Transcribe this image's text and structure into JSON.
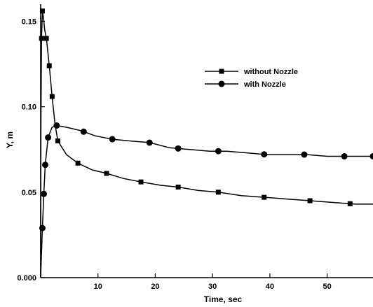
{
  "chart_data": {
    "type": "line",
    "xlabel": "Time, sec",
    "ylabel": "Y, m",
    "xlim": [
      0,
      58
    ],
    "ylim": [
      0,
      0.16
    ],
    "xticks": [
      10,
      20,
      30,
      40,
      50
    ],
    "xtick_labels": [
      "10",
      "20",
      "30",
      "40",
      "50"
    ],
    "yticks": [
      0.0,
      0.05,
      0.1,
      0.15
    ],
    "ytick_labels": [
      "0.000",
      "0.05",
      "0.10",
      "0.15"
    ],
    "grid": false,
    "legend_position": "top-right",
    "series": [
      {
        "name": "without Nozzle",
        "marker": "square",
        "x": [
          0,
          0.05,
          0.15,
          0.3,
          0.5,
          0.7,
          1.0,
          1.5,
          2.0,
          2.5,
          3.0,
          4.5,
          6.5,
          9,
          11.5,
          14.5,
          17.5,
          21,
          24,
          27.5,
          31,
          35,
          39,
          43,
          47,
          51,
          55,
          58
        ],
        "y": [
          0,
          0.09,
          0.14,
          0.156,
          0.152,
          0.145,
          0.14,
          0.124,
          0.106,
          0.09,
          0.08,
          0.072,
          0.067,
          0.063,
          0.061,
          0.058,
          0.056,
          0.054,
          0.053,
          0.051,
          0.05,
          0.048,
          0.047,
          0.046,
          0.045,
          0.044,
          0.043,
          0.043
        ]
      },
      {
        "name": "with Nozzle",
        "marker": "circle",
        "x": [
          0,
          0.1,
          0.3,
          0.55,
          0.8,
          1.3,
          2.0,
          2.8,
          4.5,
          7,
          9.5,
          12.5,
          15.5,
          19,
          22.5,
          26,
          29.5,
          32.5,
          36,
          39.5,
          43,
          46.5,
          50,
          53.5,
          57.5
        ],
        "y": [
          0,
          0.01,
          0.029,
          0.049,
          0.066,
          0.082,
          0.088,
          0.089,
          0.088,
          0.086,
          0.083,
          0.081,
          0.08,
          0.079,
          0.076,
          0.075,
          0.074,
          0.074,
          0.073,
          0.072,
          0.072,
          0.072,
          0.071,
          0.071,
          0.071
        ]
      }
    ],
    "marker_x": {
      "without Nozzle": [
        0.15,
        0.3,
        1.0,
        1.5,
        2.0,
        3.0,
        6.5,
        11.5,
        17.5,
        24,
        31,
        39,
        47,
        54
      ],
      "with Nozzle": [
        0.3,
        0.55,
        0.8,
        1.3,
        2.8,
        7.5,
        12.5,
        19,
        24,
        31,
        39,
        46,
        53,
        58
      ]
    }
  }
}
